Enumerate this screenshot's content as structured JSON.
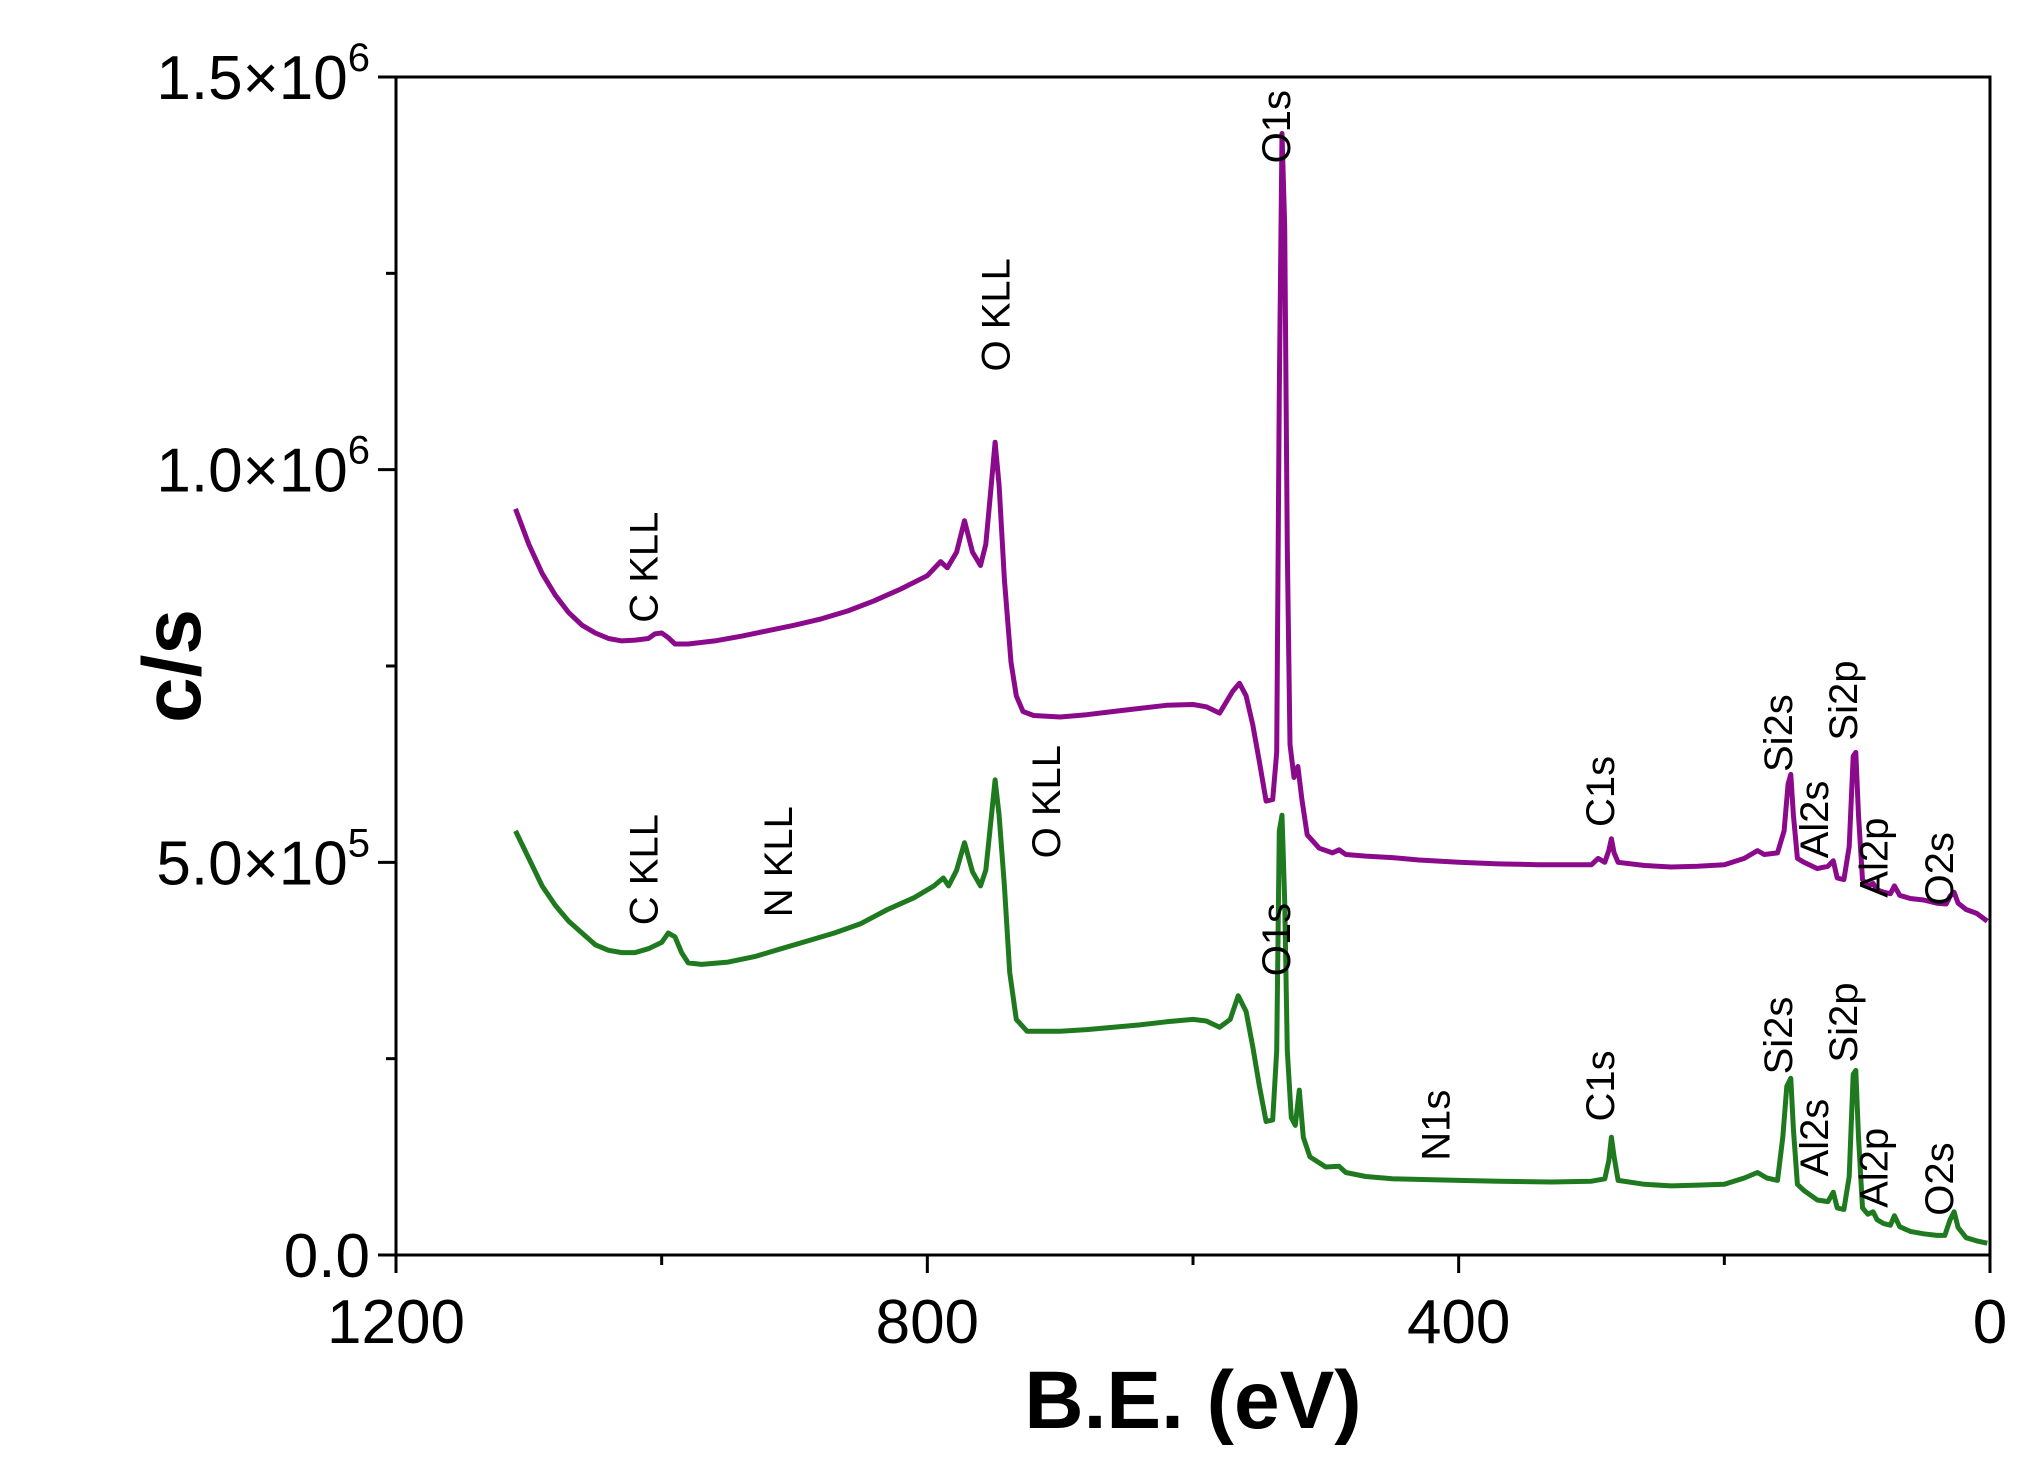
{
  "chart_data": {
    "type": "line",
    "xlabel": "B.E. (eV)",
    "ylabel": "c/s",
    "xlim": [
      1200,
      0
    ],
    "ylim": [
      0,
      1500000
    ],
    "x_ticks": [
      {
        "value": 1200,
        "label": "1200"
      },
      {
        "value": 800,
        "label": "800"
      },
      {
        "value": 400,
        "label": "400"
      },
      {
        "value": 0,
        "label": "0"
      }
    ],
    "y_ticks": [
      {
        "value": 0,
        "mant": "0.0",
        "exp": ""
      },
      {
        "value": 500000,
        "mant": "5.0×10",
        "exp": "5"
      },
      {
        "value": 1000000,
        "mant": "1.0×10",
        "exp": "6"
      },
      {
        "value": 1500000,
        "mant": "1.5×10",
        "exp": "6"
      }
    ],
    "y_minor_ticks": [
      250000,
      750000,
      1250000
    ],
    "x_minor_ticks": [
      1000,
      600,
      200
    ],
    "grid": false,
    "series": [
      {
        "color": "#8b0a8b",
        "points": [
          [
            1110,
            950000
          ],
          [
            1100,
            905000
          ],
          [
            1090,
            868000
          ],
          [
            1080,
            840000
          ],
          [
            1070,
            818000
          ],
          [
            1060,
            802000
          ],
          [
            1050,
            792000
          ],
          [
            1040,
            785000
          ],
          [
            1030,
            782000
          ],
          [
            1020,
            783000
          ],
          [
            1010,
            785000
          ],
          [
            1005,
            791000
          ],
          [
            1000,
            792000
          ],
          [
            995,
            786000
          ],
          [
            990,
            778000
          ],
          [
            980,
            778000
          ],
          [
            960,
            782000
          ],
          [
            940,
            788000
          ],
          [
            920,
            795000
          ],
          [
            900,
            802000
          ],
          [
            880,
            810000
          ],
          [
            860,
            820000
          ],
          [
            840,
            833000
          ],
          [
            820,
            848000
          ],
          [
            800,
            865000
          ],
          [
            790,
            883000
          ],
          [
            785,
            875000
          ],
          [
            778,
            895000
          ],
          [
            772,
            935000
          ],
          [
            766,
            895000
          ],
          [
            760,
            878000
          ],
          [
            756,
            905000
          ],
          [
            752,
            978000
          ],
          [
            749,
            1035000
          ],
          [
            746,
            980000
          ],
          [
            742,
            860000
          ],
          [
            737,
            755000
          ],
          [
            733,
            712000
          ],
          [
            728,
            692000
          ],
          [
            720,
            687000
          ],
          [
            700,
            685000
          ],
          [
            680,
            688000
          ],
          [
            660,
            692000
          ],
          [
            640,
            696000
          ],
          [
            620,
            700000
          ],
          [
            600,
            701000
          ],
          [
            590,
            698000
          ],
          [
            580,
            690000
          ],
          [
            570,
            718000
          ],
          [
            565,
            728000
          ],
          [
            560,
            712000
          ],
          [
            555,
            675000
          ],
          [
            550,
            628000
          ],
          [
            545,
            578000
          ],
          [
            540,
            580000
          ],
          [
            537,
            640000
          ],
          [
            535,
            1100000
          ],
          [
            533,
            1428000
          ],
          [
            531,
            1310000
          ],
          [
            529,
            900000
          ],
          [
            527,
            650000
          ],
          [
            524,
            608000
          ],
          [
            521,
            622000
          ],
          [
            518,
            580000
          ],
          [
            514,
            535000
          ],
          [
            505,
            518000
          ],
          [
            495,
            512000
          ],
          [
            490,
            516000
          ],
          [
            485,
            510000
          ],
          [
            470,
            508000
          ],
          [
            450,
            506000
          ],
          [
            430,
            503000
          ],
          [
            400,
            500000
          ],
          [
            370,
            498000
          ],
          [
            340,
            497000
          ],
          [
            300,
            497000
          ],
          [
            295,
            505000
          ],
          [
            290,
            500000
          ],
          [
            287,
            515000
          ],
          [
            285,
            530000
          ],
          [
            283,
            512000
          ],
          [
            280,
            500000
          ],
          [
            260,
            496000
          ],
          [
            240,
            494000
          ],
          [
            220,
            495000
          ],
          [
            200,
            497000
          ],
          [
            185,
            505000
          ],
          [
            175,
            515000
          ],
          [
            170,
            510000
          ],
          [
            160,
            512000
          ],
          [
            155,
            540000
          ],
          [
            152,
            600000
          ],
          [
            150,
            612000
          ],
          [
            148,
            560000
          ],
          [
            145,
            505000
          ],
          [
            140,
            500000
          ],
          [
            130,
            492000
          ],
          [
            122,
            495000
          ],
          [
            118,
            502000
          ],
          [
            115,
            480000
          ],
          [
            110,
            478000
          ],
          [
            106,
            520000
          ],
          [
            103,
            635000
          ],
          [
            101,
            640000
          ],
          [
            99,
            560000
          ],
          [
            96,
            478000
          ],
          [
            92,
            470000
          ],
          [
            88,
            473000
          ],
          [
            85,
            465000
          ],
          [
            80,
            462000
          ],
          [
            75,
            460000
          ],
          [
            72,
            470000
          ],
          [
            68,
            458000
          ],
          [
            60,
            454000
          ],
          [
            50,
            452000
          ],
          [
            40,
            448000
          ],
          [
            33,
            447000
          ],
          [
            30,
            457000
          ],
          [
            27,
            462000
          ],
          [
            24,
            448000
          ],
          [
            18,
            440000
          ],
          [
            10,
            435000
          ],
          [
            2,
            425000
          ]
        ]
      },
      {
        "color": "#1f7a1f",
        "points": [
          [
            1110,
            540000
          ],
          [
            1100,
            505000
          ],
          [
            1090,
            470000
          ],
          [
            1080,
            445000
          ],
          [
            1070,
            425000
          ],
          [
            1060,
            410000
          ],
          [
            1050,
            395000
          ],
          [
            1040,
            388000
          ],
          [
            1030,
            385000
          ],
          [
            1020,
            385000
          ],
          [
            1010,
            390000
          ],
          [
            1000,
            398000
          ],
          [
            995,
            410000
          ],
          [
            990,
            405000
          ],
          [
            985,
            385000
          ],
          [
            980,
            372000
          ],
          [
            970,
            370000
          ],
          [
            950,
            373000
          ],
          [
            930,
            380000
          ],
          [
            910,
            390000
          ],
          [
            890,
            400000
          ],
          [
            870,
            410000
          ],
          [
            850,
            422000
          ],
          [
            830,
            440000
          ],
          [
            810,
            455000
          ],
          [
            795,
            470000
          ],
          [
            788,
            480000
          ],
          [
            784,
            470000
          ],
          [
            778,
            490000
          ],
          [
            772,
            525000
          ],
          [
            766,
            488000
          ],
          [
            760,
            470000
          ],
          [
            756,
            490000
          ],
          [
            752,
            555000
          ],
          [
            749,
            605000
          ],
          [
            746,
            560000
          ],
          [
            742,
            470000
          ],
          [
            738,
            360000
          ],
          [
            733,
            300000
          ],
          [
            725,
            285000
          ],
          [
            700,
            285000
          ],
          [
            680,
            287000
          ],
          [
            660,
            290000
          ],
          [
            640,
            293000
          ],
          [
            620,
            297000
          ],
          [
            600,
            300000
          ],
          [
            590,
            298000
          ],
          [
            580,
            290000
          ],
          [
            572,
            300000
          ],
          [
            566,
            330000
          ],
          [
            560,
            310000
          ],
          [
            555,
            265000
          ],
          [
            550,
            215000
          ],
          [
            545,
            170000
          ],
          [
            540,
            172000
          ],
          [
            537,
            260000
          ],
          [
            535,
            540000
          ],
          [
            533,
            560000
          ],
          [
            531,
            450000
          ],
          [
            529,
            260000
          ],
          [
            526,
            175000
          ],
          [
            523,
            165000
          ],
          [
            520,
            210000
          ],
          [
            517,
            150000
          ],
          [
            512,
            125000
          ],
          [
            500,
            112000
          ],
          [
            490,
            113000
          ],
          [
            485,
            105000
          ],
          [
            470,
            100000
          ],
          [
            450,
            97000
          ],
          [
            400,
            95000
          ],
          [
            370,
            94000
          ],
          [
            330,
            93000
          ],
          [
            300,
            94000
          ],
          [
            290,
            97000
          ],
          [
            287,
            120000
          ],
          [
            285,
            150000
          ],
          [
            283,
            125000
          ],
          [
            280,
            95000
          ],
          [
            260,
            90000
          ],
          [
            240,
            88000
          ],
          [
            220,
            89000
          ],
          [
            200,
            90000
          ],
          [
            185,
            98000
          ],
          [
            175,
            105000
          ],
          [
            168,
            98000
          ],
          [
            160,
            95000
          ],
          [
            156,
            150000
          ],
          [
            153,
            215000
          ],
          [
            150,
            225000
          ],
          [
            148,
            160000
          ],
          [
            145,
            90000
          ],
          [
            140,
            82000
          ],
          [
            130,
            70000
          ],
          [
            122,
            68000
          ],
          [
            118,
            80000
          ],
          [
            115,
            60000
          ],
          [
            110,
            58000
          ],
          [
            106,
            100000
          ],
          [
            103,
            230000
          ],
          [
            101,
            235000
          ],
          [
            99,
            150000
          ],
          [
            96,
            60000
          ],
          [
            92,
            52000
          ],
          [
            88,
            55000
          ],
          [
            85,
            45000
          ],
          [
            80,
            40000
          ],
          [
            75,
            38000
          ],
          [
            72,
            50000
          ],
          [
            68,
            36000
          ],
          [
            60,
            30000
          ],
          [
            50,
            27000
          ],
          [
            40,
            25000
          ],
          [
            34,
            25000
          ],
          [
            30,
            45000
          ],
          [
            27,
            55000
          ],
          [
            24,
            35000
          ],
          [
            18,
            22000
          ],
          [
            10,
            18000
          ],
          [
            2,
            15000
          ]
        ]
      }
    ],
    "annotations": [
      {
        "text": "O1s",
        "x": 527,
        "y": 1390000,
        "series": 0
      },
      {
        "text": "O KLL",
        "x": 738,
        "y": 1125000,
        "series": 0
      },
      {
        "text": "C KLL",
        "x": 1003,
        "y": 805000,
        "series": 0
      },
      {
        "text": "C1s",
        "x": 283,
        "y": 545000,
        "series": 0
      },
      {
        "text": "Si2s",
        "x": 149,
        "y": 615000,
        "series": 0
      },
      {
        "text": "Al2s",
        "x": 122,
        "y": 505000,
        "series": 0
      },
      {
        "text": "Si2p",
        "x": 100,
        "y": 655000,
        "series": 0
      },
      {
        "text": "Al2p",
        "x": 77,
        "y": 455000,
        "series": 0
      },
      {
        "text": "O2s",
        "x": 28,
        "y": 445000,
        "series": 0
      },
      {
        "text": "O KLL",
        "x": 700,
        "y": 505000,
        "series": 1
      },
      {
        "text": "C KLL",
        "x": 1003,
        "y": 420000,
        "series": 1
      },
      {
        "text": "N KLL",
        "x": 902,
        "y": 430000,
        "series": 1
      },
      {
        "text": "O1s",
        "x": 527,
        "y": 355000,
        "series": 1
      },
      {
        "text": "N1s",
        "x": 407,
        "y": 120000,
        "series": 1
      },
      {
        "text": "C1s",
        "x": 283,
        "y": 170000,
        "series": 1
      },
      {
        "text": "Si2s",
        "x": 149,
        "y": 230000,
        "series": 1
      },
      {
        "text": "Al2s",
        "x": 122,
        "y": 100000,
        "series": 1
      },
      {
        "text": "Si2p",
        "x": 100,
        "y": 245000,
        "series": 1
      },
      {
        "text": "Al2p",
        "x": 77,
        "y": 60000,
        "series": 1
      },
      {
        "text": "O2s",
        "x": 28,
        "y": 50000,
        "series": 1
      }
    ]
  }
}
